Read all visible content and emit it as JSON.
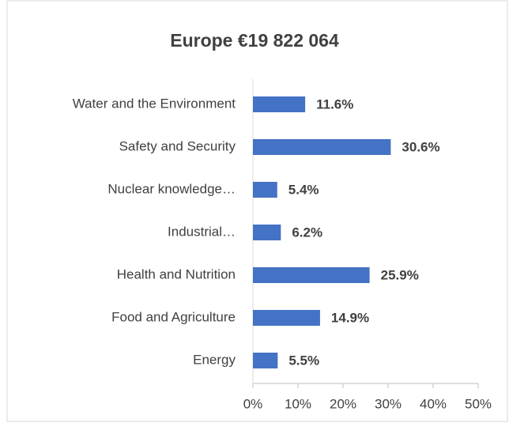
{
  "chart_data": {
    "type": "bar",
    "orientation": "horizontal",
    "title": "Europe €19 822 064",
    "categories": [
      "Water and the Environment",
      "Safety and Security",
      "Nuclear knowledge…",
      "Industrial…",
      "Health and Nutrition",
      "Food and Agriculture",
      "Energy"
    ],
    "values": [
      11.6,
      30.6,
      5.4,
      6.2,
      25.9,
      14.9,
      5.5
    ],
    "value_labels": [
      "11.6%",
      "30.6%",
      "5.4%",
      "6.2%",
      "25.9%",
      "14.9%",
      "5.5%"
    ],
    "color": "#4472c4",
    "xlim": [
      0,
      50
    ],
    "xticks": [
      {
        "value": 0,
        "label": "0%"
      },
      {
        "value": 10,
        "label": "10%"
      },
      {
        "value": 20,
        "label": "20%"
      },
      {
        "value": 30,
        "label": "30%"
      },
      {
        "value": 40,
        "label": "40%"
      },
      {
        "value": 50,
        "label": "50%"
      }
    ]
  }
}
